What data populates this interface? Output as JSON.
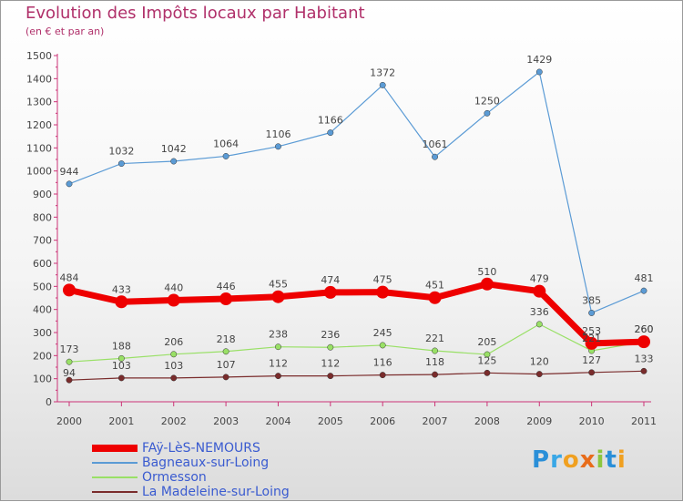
{
  "title": "Evolution des Impôts locaux par Habitant",
  "subtitle": "(en € et par an)",
  "logo_text": "Proxiti",
  "chart_data": {
    "type": "line",
    "title": "Evolution des Impôts locaux par Habitant",
    "subtitle": "(en € et par an)",
    "xlabel": "",
    "ylabel": "",
    "x": [
      "2000",
      "2001",
      "2002",
      "2003",
      "2004",
      "2005",
      "2006",
      "2007",
      "2008",
      "2009",
      "2010",
      "2011"
    ],
    "ylim": [
      0,
      1500
    ],
    "yticks": [
      0,
      100,
      200,
      300,
      400,
      500,
      600,
      700,
      800,
      900,
      1000,
      1100,
      1200,
      1300,
      1400,
      1500
    ],
    "grid": false,
    "legend_position": "bottom-left",
    "series": [
      {
        "name": "FAÿ-LèS-NEMOURS",
        "color": "#ee0000",
        "values": [
          484,
          433,
          440,
          446,
          455,
          474,
          475,
          451,
          510,
          479,
          253,
          260
        ]
      },
      {
        "name": "Bagneaux-sur-Loing",
        "color": "#5b9bd5",
        "values": [
          944,
          1032,
          1042,
          1064,
          1106,
          1166,
          1372,
          1061,
          1250,
          1429,
          385,
          481
        ]
      },
      {
        "name": "Ormesson",
        "color": "#99e066",
        "values": [
          173,
          188,
          206,
          218,
          238,
          236,
          245,
          221,
          205,
          336,
          221,
          260
        ]
      },
      {
        "name": "La Madeleine-sur-Loing",
        "color": "#7a2c2c",
        "values": [
          94,
          103,
          103,
          107,
          112,
          112,
          116,
          118,
          125,
          120,
          127,
          133
        ]
      }
    ]
  }
}
